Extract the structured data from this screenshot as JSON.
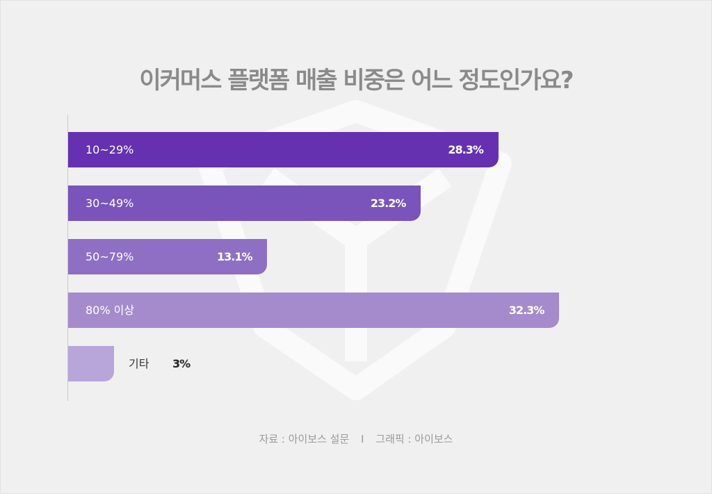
{
  "chart_data": {
    "type": "bar",
    "orientation": "horizontal",
    "title": "이커머스 플랫폼 매출 비중은 어느 정도인가요?",
    "categories": [
      "10~29%",
      "30~49%",
      "50~79%",
      "80% 이상",
      "기타"
    ],
    "values": [
      28.3,
      23.2,
      13.1,
      32.3,
      3
    ],
    "value_labels": [
      "28.3%",
      "23.2%",
      "13.1%",
      "32.3%",
      "3%"
    ],
    "colors": [
      "#6531b0",
      "#7954bb",
      "#8f6fc4",
      "#a68bcc",
      "#b8a5da"
    ],
    "xlim": [
      0,
      35
    ],
    "grid": false
  },
  "footer": {
    "source": "자료 : 아이보스 설문",
    "separator": "I",
    "graphic": "그래픽 : 아이보스"
  }
}
